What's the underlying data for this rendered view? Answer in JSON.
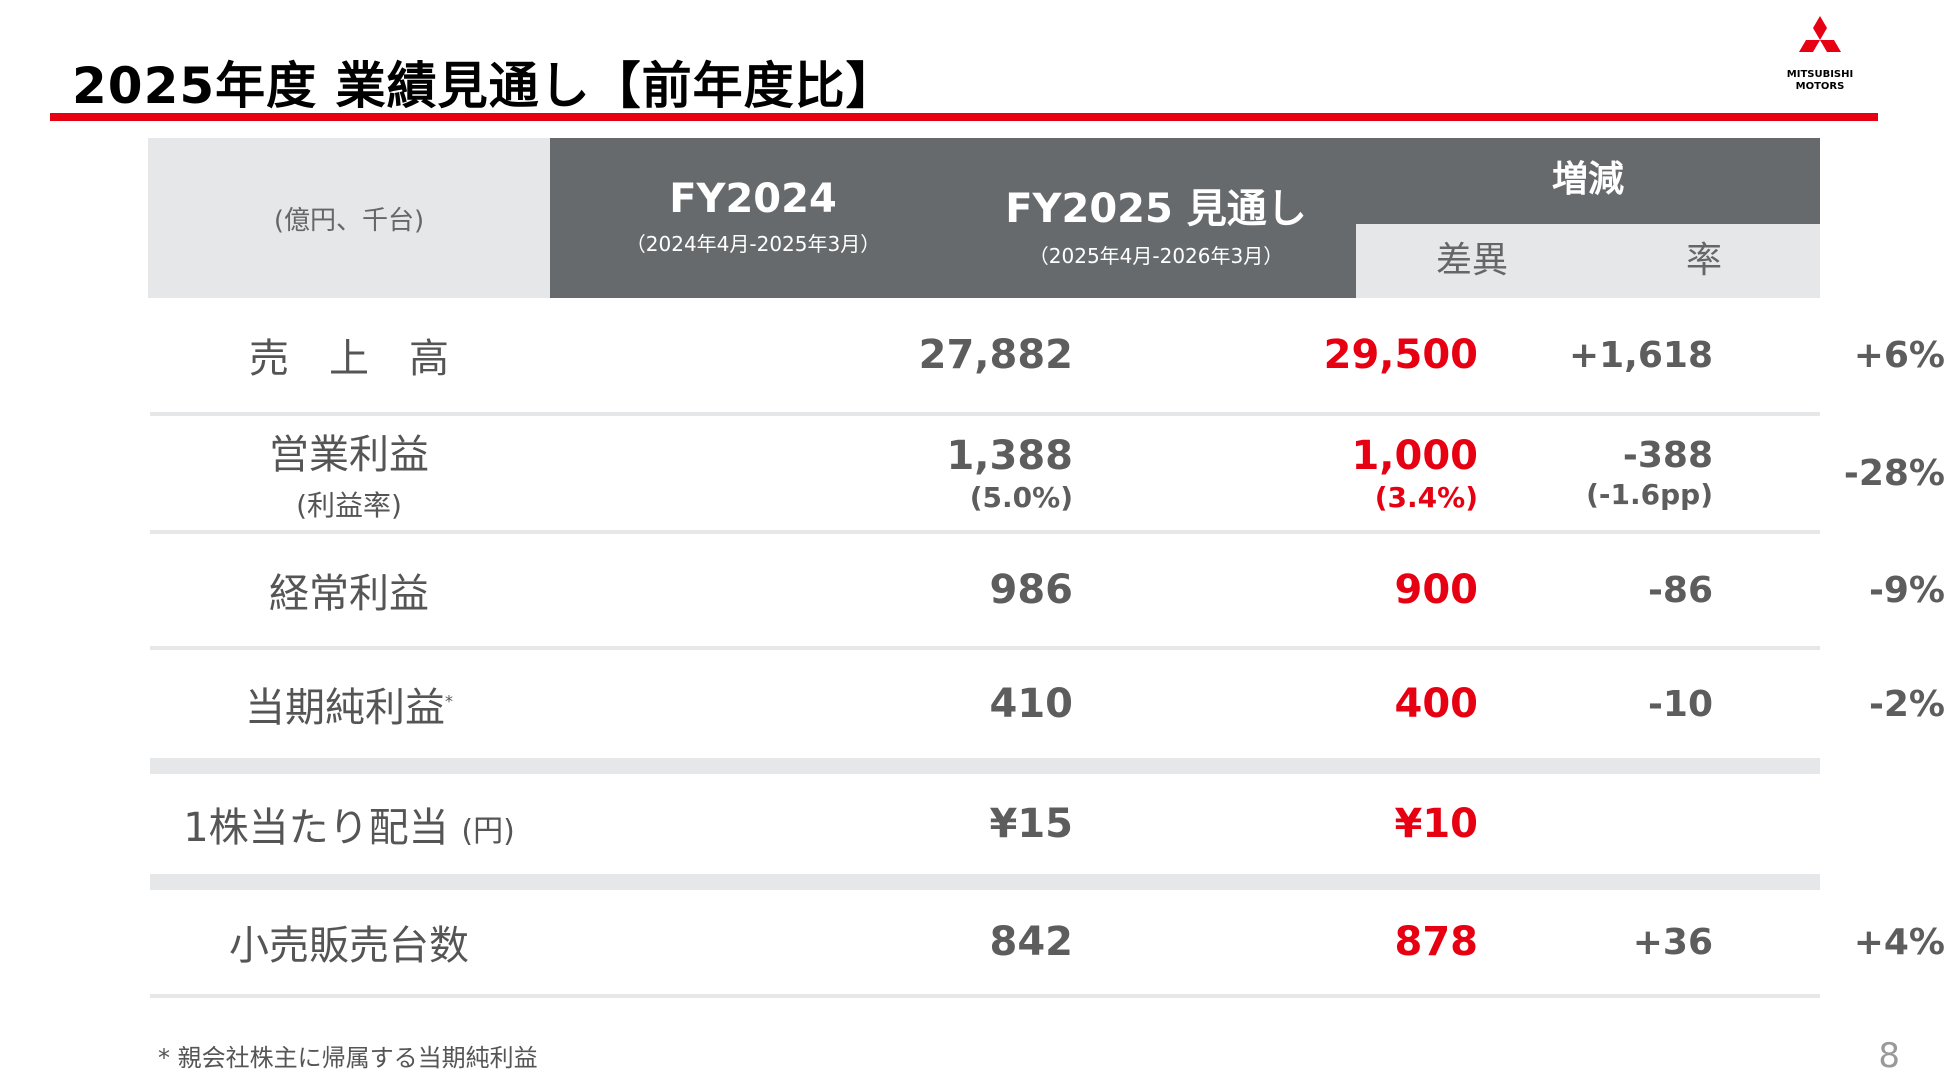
{
  "title": "2025年度 業績見通し【前年度比】",
  "logo": {
    "line1": "MITSUBISHI",
    "line2": "MOTORS",
    "color": "#e60012"
  },
  "colors": {
    "accent": "#e60012",
    "header_dark": "#676a6d",
    "header_light": "#e6e7e8"
  },
  "table": {
    "unit": "(億円、千台)",
    "col_fy2024": {
      "title": "FY2024",
      "period": "（2024年4月-2025年3月）"
    },
    "col_fy2025": {
      "title": "FY2025 見通し",
      "period": "（2025年4月-2026年3月）"
    },
    "col_change": {
      "title": "増減",
      "diff": "差異",
      "rate": "率"
    },
    "rows": [
      {
        "label": "売　上　高",
        "fy2024": "27,882",
        "fy2025": "29,500",
        "diff": "+1,618",
        "rate": "+6%"
      },
      {
        "label": "営業利益",
        "sublabel": "(利益率)",
        "fy2024": "1,388",
        "fy2024_sub": "(5.0%)",
        "fy2025": "1,000",
        "fy2025_sub": "(3.4%)",
        "diff": "-388",
        "diff_sub": "(-1.6pp)",
        "rate": "-28%"
      },
      {
        "label": "経常利益",
        "fy2024": "986",
        "fy2025": "900",
        "diff": "-86",
        "rate": "-9%"
      },
      {
        "label": "当期純利益",
        "label_mark": "*",
        "fy2024": "410",
        "fy2025": "400",
        "diff": "-10",
        "rate": "-2%"
      },
      {
        "label": "1株当たり配当",
        "label_unit": "(円)",
        "fy2024": "¥15",
        "fy2025": "¥10",
        "diff": "",
        "rate": ""
      },
      {
        "label": "小売販売台数",
        "fy2024": "842",
        "fy2025": "878",
        "diff": "+36",
        "rate": "+4%"
      }
    ]
  },
  "footnote": "* 親会社株主に帰属する当期純利益",
  "page_number": "8"
}
